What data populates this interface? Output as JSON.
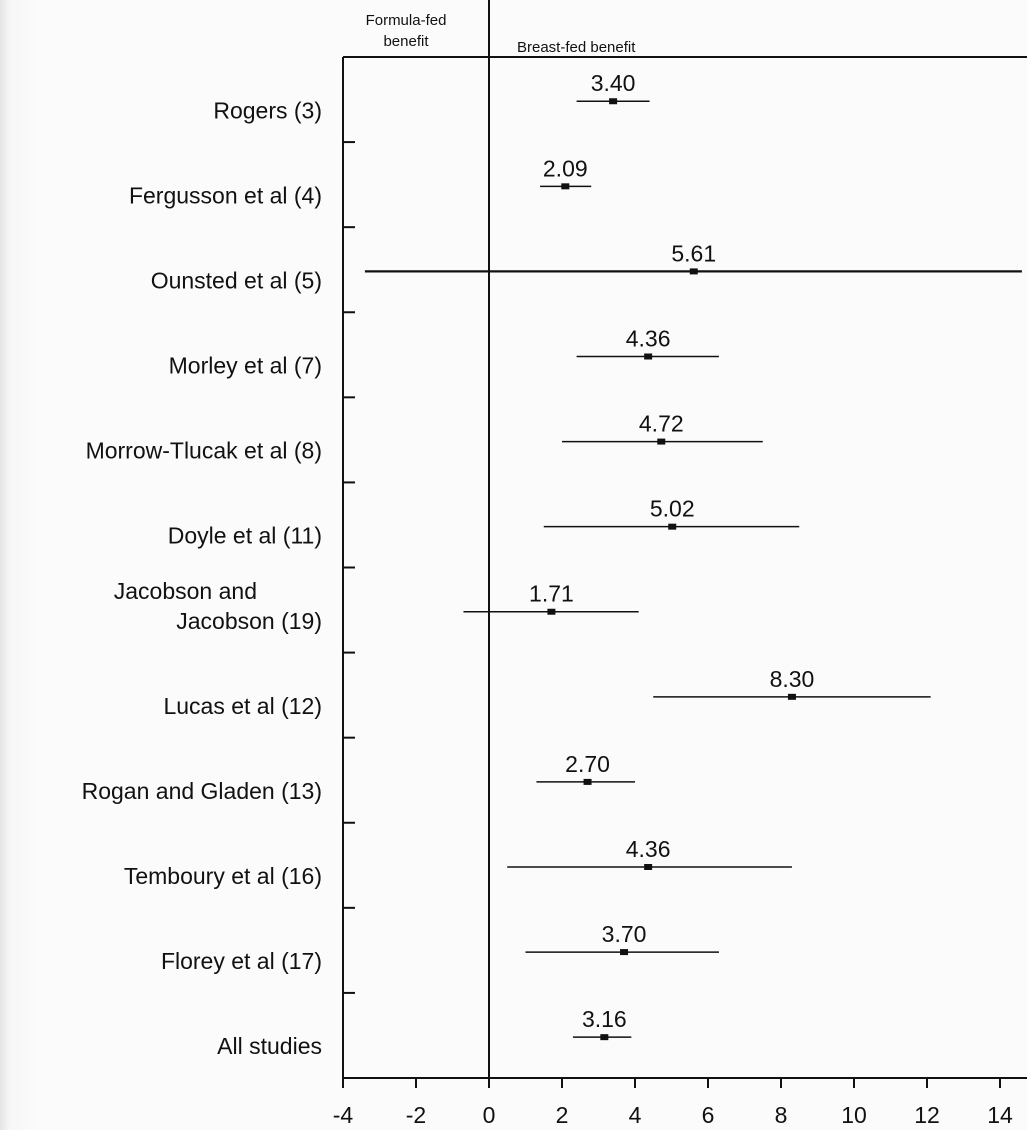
{
  "chart_data": {
    "type": "forest",
    "header_left_line1": "Formula-fed",
    "header_left_line2": "benefit",
    "header_right": "Breast-fed benefit",
    "xlim": [
      -4,
      14
    ],
    "xticks": [
      "-4",
      "-2",
      "0",
      "2",
      "4",
      "6",
      "8",
      "10",
      "12",
      "14"
    ],
    "xtick_values": [
      -4,
      -2,
      0,
      2,
      4,
      6,
      8,
      10,
      12,
      14
    ],
    "rows": [
      {
        "label": [
          "Rogers (3)"
        ],
        "value": 3.4,
        "value_label": "3.40",
        "ci": [
          2.4,
          4.4
        ]
      },
      {
        "label": [
          "Fergusson et al (4)"
        ],
        "value": 2.09,
        "value_label": "2.09",
        "ci": [
          1.4,
          2.8
        ]
      },
      {
        "label": [
          "Ounsted et al (5)"
        ],
        "value": 5.61,
        "value_label": "5.61",
        "ci": [
          -3.4,
          14.6
        ]
      },
      {
        "label": [
          "Morley et al (7)"
        ],
        "value": 4.36,
        "value_label": "4.36",
        "ci": [
          2.4,
          6.3
        ]
      },
      {
        "label": [
          "Morrow-Tlucak et al (8)"
        ],
        "value": 4.72,
        "value_label": "4.72",
        "ci": [
          2.0,
          7.5
        ]
      },
      {
        "label": [
          "Doyle et al (11)"
        ],
        "value": 5.02,
        "value_label": "5.02",
        "ci": [
          1.5,
          8.5
        ]
      },
      {
        "label": [
          "Jacobson and",
          "Jacobson (19)"
        ],
        "value": 1.71,
        "value_label": "1.71",
        "ci": [
          -0.7,
          4.1
        ]
      },
      {
        "label": [
          "Lucas et al (12)"
        ],
        "value": 8.3,
        "value_label": "8.30",
        "ci": [
          4.5,
          12.1
        ]
      },
      {
        "label": [
          "Rogan and Gladen (13)"
        ],
        "value": 2.7,
        "value_label": "2.70",
        "ci": [
          1.3,
          4.0
        ]
      },
      {
        "label": [
          "Temboury et al (16)"
        ],
        "value": 4.36,
        "value_label": "4.36",
        "ci": [
          0.5,
          8.3
        ]
      },
      {
        "label": [
          "Florey et al (17)"
        ],
        "value": 3.7,
        "value_label": "3.70",
        "ci": [
          1.0,
          6.3
        ]
      },
      {
        "label": [
          "All studies"
        ],
        "value": 3.16,
        "value_label": "3.16",
        "ci": [
          2.3,
          3.9
        ]
      }
    ]
  }
}
